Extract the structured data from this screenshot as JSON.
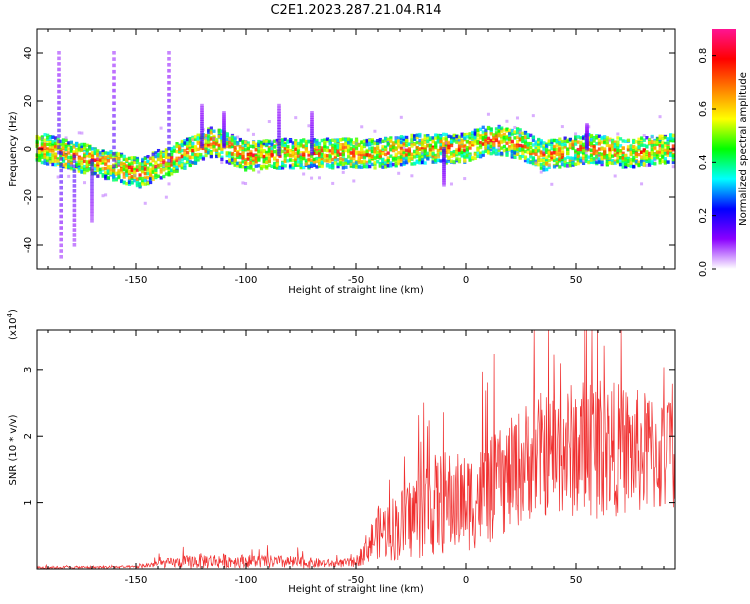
{
  "title": "C2E1.2023.287.21.04.R14",
  "chart_data": [
    {
      "type": "heatmap",
      "xlabel": "Height of straight line (km)",
      "ylabel": "Frequency (Hz)",
      "xlim": [
        -195,
        95
      ],
      "ylim": [
        -50,
        50
      ],
      "xticks": [
        -150,
        -100,
        -50,
        0,
        50
      ],
      "yticks": [
        -40,
        -20,
        0,
        20,
        40
      ],
      "colorbar": {
        "label": "Normalized spectral amplitude",
        "range": [
          0.0,
          0.9
        ],
        "ticks": [
          "0.0",
          "0.2",
          "0.4",
          "0.6",
          "0.8"
        ],
        "colormap": [
          "#ffffff",
          "#8a00ff",
          "#0000ff",
          "#00ffff",
          "#00ff00",
          "#ffff00",
          "#ff8000",
          "#ff0000",
          "#ff1493"
        ]
      },
      "ridge": {
        "description_note": "",
        "centre_hz": [
          [
            -192,
            0
          ],
          [
            -170,
            -5
          ],
          [
            -148,
            -10
          ],
          [
            -130,
            -3
          ],
          [
            -115,
            3
          ],
          [
            -100,
            -3
          ],
          [
            -80,
            -2
          ],
          [
            -60,
            -2
          ],
          [
            -40,
            -2
          ],
          [
            -20,
            0
          ],
          [
            0,
            0
          ],
          [
            10,
            4
          ],
          [
            25,
            2
          ],
          [
            35,
            -3
          ],
          [
            55,
            0
          ],
          [
            75,
            -2
          ],
          [
            92,
            0
          ]
        ],
        "spikes_hz": [
          [
            -185,
            40
          ],
          [
            -184,
            -45
          ],
          [
            -178,
            -40
          ],
          [
            -170,
            -30
          ],
          [
            -160,
            40
          ],
          [
            -135,
            40
          ],
          [
            -120,
            18
          ],
          [
            -110,
            15
          ],
          [
            -85,
            18
          ],
          [
            -70,
            15
          ],
          [
            -10,
            -15
          ],
          [
            55,
            10
          ]
        ]
      }
    },
    {
      "type": "line",
      "color": "#f03030",
      "xlabel": "Height of straight line (km)",
      "ylabel": "SNR (10 * v/v)",
      "multiplier_label": "(x10",
      "multiplier_exp": "4",
      "xlim": [
        -195,
        95
      ],
      "ylim": [
        0,
        3.6
      ],
      "xticks": [
        -150,
        -100,
        -50,
        0,
        50
      ],
      "yticks": [
        1,
        2,
        3
      ],
      "envelope": {
        "x": [
          -195,
          -150,
          -140,
          -120,
          -100,
          -80,
          -60,
          -50,
          -40,
          -30,
          -20,
          -10,
          0,
          10,
          20,
          30,
          40,
          50,
          60,
          70,
          80,
          95
        ],
        "mean": [
          0.02,
          0.03,
          0.08,
          0.12,
          0.12,
          0.1,
          0.08,
          0.1,
          0.55,
          0.65,
          0.9,
          1.0,
          1.0,
          1.15,
          1.4,
          1.7,
          1.75,
          1.8,
          1.85,
          1.8,
          1.75,
          1.7
        ],
        "spread": [
          0.02,
          0.02,
          0.06,
          0.12,
          0.1,
          0.1,
          0.06,
          0.08,
          0.4,
          0.55,
          0.75,
          0.8,
          0.75,
          0.8,
          0.85,
          0.95,
          0.95,
          1.05,
          1.1,
          1.0,
          0.95,
          0.9
        ]
      }
    }
  ]
}
